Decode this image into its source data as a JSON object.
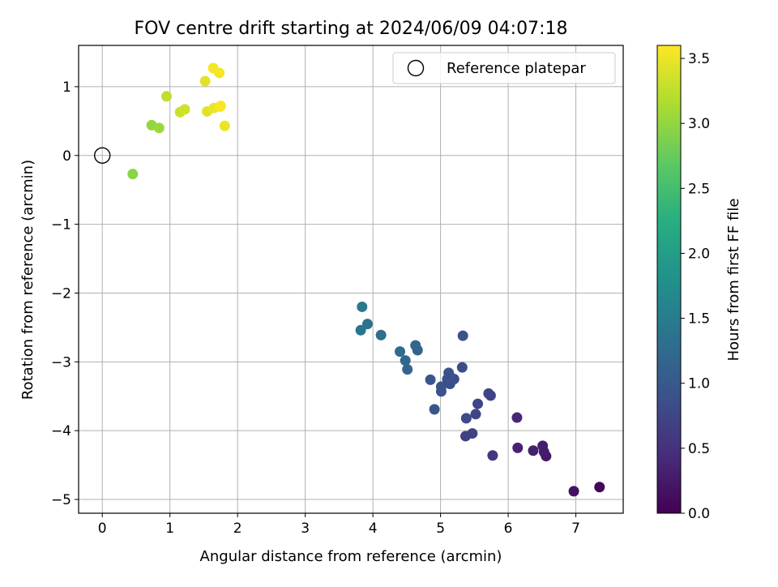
{
  "chart_data": {
    "type": "scatter",
    "title": "FOV centre drift starting at 2024/06/09 04:07:18",
    "xlabel": "Angular distance from reference (arcmin)",
    "ylabel": "Rotation from reference (arcmin)",
    "xlim": [
      -0.35,
      7.7
    ],
    "ylim": [
      -5.2,
      1.6
    ],
    "xticks": [
      0,
      1,
      2,
      3,
      4,
      5,
      6,
      7
    ],
    "yticks": [
      1,
      0,
      -1,
      -2,
      -3,
      -4,
      -5
    ],
    "xtick_labels": [
      "0",
      "1",
      "2",
      "3",
      "4",
      "5",
      "6",
      "7"
    ],
    "ytick_labels": [
      "1",
      "0",
      "−1",
      "−2",
      "−3",
      "−4",
      "−5"
    ],
    "grid": true,
    "legend": {
      "position": "top-right",
      "entries": [
        "Reference platepar"
      ]
    },
    "reference_point": {
      "name": "Reference platepar",
      "x": 0,
      "y": 0
    },
    "colorbar": {
      "label": "Hours from first FF file",
      "colormap": "viridis",
      "range": [
        0.0,
        3.6
      ],
      "ticks": [
        0.0,
        0.5,
        1.0,
        1.5,
        2.0,
        2.5,
        3.0,
        3.5
      ],
      "tick_labels": [
        "0.0",
        "0.5",
        "1.0",
        "1.5",
        "2.0",
        "2.5",
        "3.0",
        "3.5"
      ]
    },
    "points": [
      {
        "x": 7.35,
        "y": -4.82,
        "c": 0.05
      },
      {
        "x": 6.97,
        "y": -4.88,
        "c": 0.15
      },
      {
        "x": 6.56,
        "y": -4.37,
        "c": 0.25
      },
      {
        "x": 6.53,
        "y": -4.31,
        "c": 0.28
      },
      {
        "x": 6.51,
        "y": -4.22,
        "c": 0.3
      },
      {
        "x": 6.37,
        "y": -4.29,
        "c": 0.32
      },
      {
        "x": 6.14,
        "y": -4.25,
        "c": 0.35
      },
      {
        "x": 6.13,
        "y": -3.81,
        "c": 0.38
      },
      {
        "x": 5.77,
        "y": -4.36,
        "c": 0.6
      },
      {
        "x": 5.74,
        "y": -3.49,
        "c": 0.7
      },
      {
        "x": 5.71,
        "y": -3.46,
        "c": 0.72
      },
      {
        "x": 5.55,
        "y": -3.61,
        "c": 0.75
      },
      {
        "x": 5.52,
        "y": -3.76,
        "c": 0.75
      },
      {
        "x": 5.47,
        "y": -4.04,
        "c": 0.7
      },
      {
        "x": 5.37,
        "y": -4.08,
        "c": 0.68
      },
      {
        "x": 5.38,
        "y": -3.82,
        "c": 0.8
      },
      {
        "x": 5.32,
        "y": -3.08,
        "c": 0.85
      },
      {
        "x": 5.33,
        "y": -2.62,
        "c": 0.9
      },
      {
        "x": 5.2,
        "y": -3.25,
        "c": 0.85
      },
      {
        "x": 5.14,
        "y": -3.32,
        "c": 0.85
      },
      {
        "x": 5.12,
        "y": -3.16,
        "c": 0.9
      },
      {
        "x": 5.13,
        "y": -3.2,
        "c": 0.9
      },
      {
        "x": 5.1,
        "y": -3.25,
        "c": 0.88
      },
      {
        "x": 5.01,
        "y": -3.43,
        "c": 0.9
      },
      {
        "x": 5.01,
        "y": -3.36,
        "c": 0.92
      },
      {
        "x": 4.91,
        "y": -3.69,
        "c": 0.95
      },
      {
        "x": 4.85,
        "y": -3.26,
        "c": 0.95
      },
      {
        "x": 4.66,
        "y": -2.83,
        "c": 1.15
      },
      {
        "x": 4.63,
        "y": -2.76,
        "c": 1.2
      },
      {
        "x": 4.51,
        "y": -3.11,
        "c": 1.15
      },
      {
        "x": 4.48,
        "y": -2.98,
        "c": 1.2
      },
      {
        "x": 4.4,
        "y": -2.85,
        "c": 1.25
      },
      {
        "x": 4.12,
        "y": -2.61,
        "c": 1.3
      },
      {
        "x": 3.92,
        "y": -2.45,
        "c": 1.35
      },
      {
        "x": 3.82,
        "y": -2.54,
        "c": 1.38
      },
      {
        "x": 3.84,
        "y": -2.2,
        "c": 1.45
      },
      {
        "x": 0.45,
        "y": -0.27,
        "c": 2.95
      },
      {
        "x": 0.73,
        "y": 0.44,
        "c": 3.0
      },
      {
        "x": 0.84,
        "y": 0.4,
        "c": 3.05
      },
      {
        "x": 0.95,
        "y": 0.86,
        "c": 3.25
      },
      {
        "x": 1.15,
        "y": 0.63,
        "c": 3.3
      },
      {
        "x": 1.22,
        "y": 0.67,
        "c": 3.35
      },
      {
        "x": 1.52,
        "y": 1.08,
        "c": 3.45
      },
      {
        "x": 1.55,
        "y": 0.64,
        "c": 3.45
      },
      {
        "x": 1.65,
        "y": 0.69,
        "c": 3.5
      },
      {
        "x": 1.64,
        "y": 1.27,
        "c": 3.55
      },
      {
        "x": 1.73,
        "y": 1.2,
        "c": 3.55
      },
      {
        "x": 1.75,
        "y": 0.72,
        "c": 3.55
      },
      {
        "x": 1.74,
        "y": 0.71,
        "c": 3.58
      },
      {
        "x": 1.81,
        "y": 0.43,
        "c": 3.5
      }
    ]
  }
}
